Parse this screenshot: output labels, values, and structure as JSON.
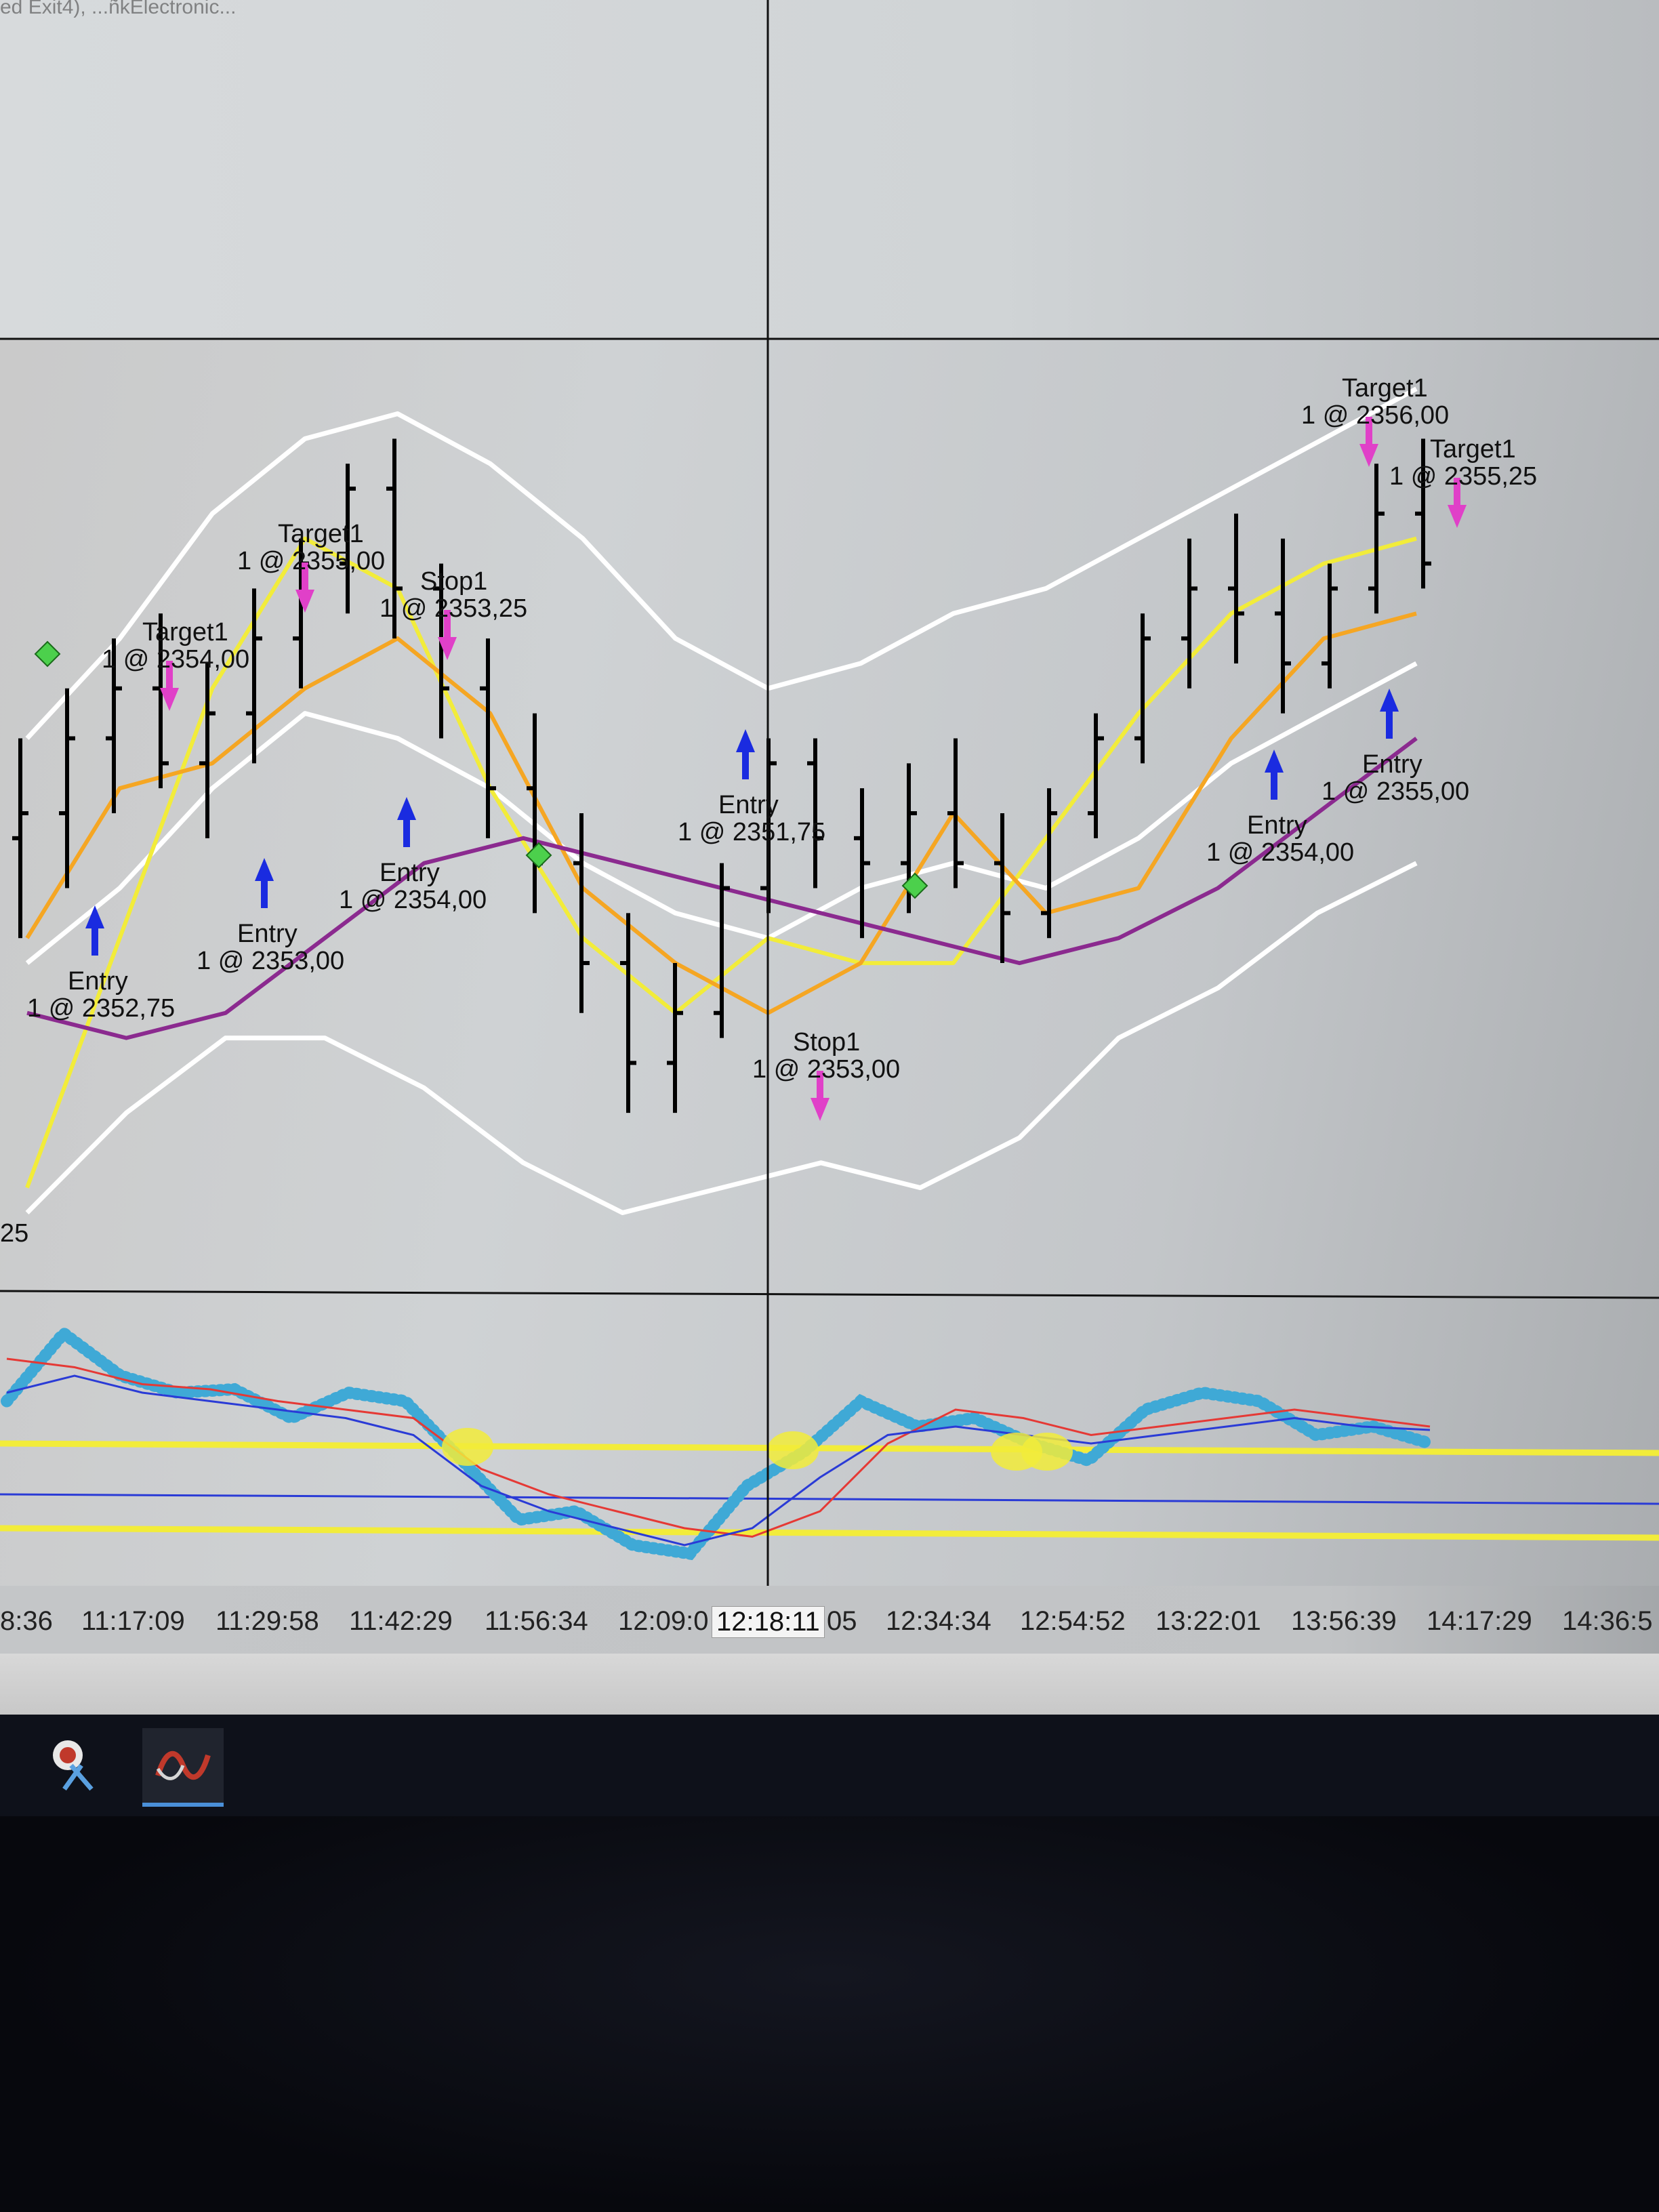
{
  "window": {
    "partial_title": "ed Exit4), ...ñkElectronic..."
  },
  "chart_data": [
    {
      "type": "candlestick-price",
      "panel": "price",
      "series": [
        {
          "kind": "ohlc",
          "color": "#000000",
          "values": [
            [
              2352.5,
              2353.5,
              2351.5,
              2352.75
            ],
            [
              2352.75,
              2354.0,
              2352.0,
              2353.5
            ],
            [
              2353.5,
              2354.5,
              2352.75,
              2354.0
            ],
            [
              2354.0,
              2354.75,
              2353.0,
              2353.25
            ],
            [
              2353.25,
              2354.25,
              2352.5,
              2353.75
            ],
            [
              2353.75,
              2355.0,
              2353.25,
              2354.5
            ],
            [
              2354.5,
              2355.5,
              2354.0,
              2355.25
            ],
            [
              2355.25,
              2356.25,
              2354.75,
              2356.0
            ],
            [
              2356.0,
              2356.5,
              2354.5,
              2355.0
            ],
            [
              2355.0,
              2355.25,
              2353.5,
              2354.0
            ],
            [
              2354.0,
              2354.5,
              2352.5,
              2353.0
            ],
            [
              2353.0,
              2353.75,
              2351.75,
              2352.25
            ],
            [
              2352.25,
              2352.75,
              2350.75,
              2351.25
            ],
            [
              2351.25,
              2351.75,
              2349.75,
              2350.25
            ],
            [
              2350.25,
              2351.25,
              2349.75,
              2350.75
            ],
            [
              2350.75,
              2352.25,
              2350.5,
              2352.0
            ],
            [
              2352.0,
              2353.5,
              2351.75,
              2353.25
            ],
            [
              2353.25,
              2353.5,
              2352.0,
              2352.5
            ],
            [
              2352.5,
              2353.0,
              2351.5,
              2352.25
            ],
            [
              2352.25,
              2353.25,
              2351.75,
              2352.75
            ],
            [
              2352.75,
              2353.5,
              2352.0,
              2352.25
            ],
            [
              2352.25,
              2352.75,
              2351.25,
              2351.75
            ],
            [
              2351.75,
              2353.0,
              2351.5,
              2352.75
            ],
            [
              2352.75,
              2353.75,
              2352.5,
              2353.5
            ],
            [
              2353.5,
              2354.75,
              2353.25,
              2354.5
            ],
            [
              2354.5,
              2355.5,
              2354.0,
              2355.0
            ],
            [
              2355.0,
              2355.75,
              2354.25,
              2354.75
            ],
            [
              2354.75,
              2355.5,
              2353.75,
              2354.25
            ],
            [
              2354.25,
              2355.25,
              2354.0,
              2355.0
            ],
            [
              2355.0,
              2356.25,
              2354.75,
              2355.75
            ],
            [
              2355.75,
              2356.5,
              2355.0,
              2355.25
            ]
          ]
        },
        {
          "name": "",
          "kind": "line",
          "color": "#ffffff",
          "role": "upper band",
          "values": [
            2353.5,
            2354.5,
            2355.75,
            2356.5,
            2356.75,
            2356.25,
            2355.5,
            2354.5,
            2354.0,
            2354.25,
            2354.75,
            2355.0,
            2355.5,
            2356.0,
            2356.5,
            2357.0
          ]
        },
        {
          "name": "",
          "kind": "line",
          "color": "#ffffff",
          "role": "middle band",
          "values": [
            2351.25,
            2352.0,
            2353.0,
            2353.75,
            2353.5,
            2353.0,
            2352.25,
            2351.75,
            2351.5,
            2352.0,
            2352.25,
            2352.0,
            2352.5,
            2353.25,
            2353.75,
            2354.25
          ]
        },
        {
          "name": "",
          "kind": "line",
          "color": "#ffffff",
          "role": "lower band",
          "values": [
            2348.75,
            2349.75,
            2350.5,
            2350.5,
            2350.0,
            2349.25,
            2348.75,
            2349.0,
            2349.25,
            2349.0,
            2349.5,
            2350.5,
            2351.0,
            2351.75,
            2352.25
          ]
        },
        {
          "name": "",
          "kind": "line",
          "color": "#f2ec3a",
          "values": [
            2349.0,
            2351.5,
            2354.0,
            2355.5,
            2355.0,
            2353.0,
            2351.5,
            2350.75,
            2351.5,
            2351.25,
            2351.25,
            2352.5,
            2353.75,
            2354.75,
            2355.25,
            2355.5
          ]
        },
        {
          "name": "",
          "kind": "line",
          "color": "#f5a623",
          "values": [
            2351.5,
            2353.0,
            2353.25,
            2354.0,
            2354.5,
            2353.75,
            2352.0,
            2351.25,
            2350.75,
            2351.25,
            2352.75,
            2351.75,
            2352.0,
            2353.5,
            2354.5,
            2354.75
          ]
        },
        {
          "name": "",
          "kind": "line",
          "color": "#8b2a8f",
          "values": [
            2350.75,
            2350.5,
            2350.75,
            2351.5,
            2352.25,
            2352.5,
            2352.25,
            2352.0,
            2351.75,
            2351.5,
            2351.25,
            2351.5,
            2352.0,
            2352.75,
            2353.5
          ]
        }
      ],
      "annotations": [
        {
          "kind": "entry",
          "label": "Entry",
          "detail": "1 @ 2352,75"
        },
        {
          "kind": "target",
          "label": "Target1",
          "detail": "1 @ 2354,00"
        },
        {
          "kind": "entry",
          "label": "Entry",
          "detail": "1 @ 2353,00"
        },
        {
          "kind": "target",
          "label": "Target1",
          "detail": "1 @ 2355,00"
        },
        {
          "kind": "stop",
          "label": "Stop1",
          "detail": "1 @ 2353,25"
        },
        {
          "kind": "entry",
          "label": "Entry",
          "detail": "1 @ 2354,00"
        },
        {
          "kind": "entry",
          "label": "Entry",
          "detail": "1 @ 2351,75"
        },
        {
          "kind": "stop",
          "label": "Stop1",
          "detail": "1 @ 2353,00"
        },
        {
          "kind": "entry",
          "label": "Entry",
          "detail": "1 @ 2354,00"
        },
        {
          "kind": "entry",
          "label": "Entry",
          "detail": "1 @ 2355,00"
        },
        {
          "kind": "target",
          "label": "Target1",
          "detail": "1 @ 2356,00"
        },
        {
          "kind": "target",
          "label": "Target1",
          "detail": "1 @ 2355,25"
        }
      ],
      "y_axis_partial_label": "25"
    },
    {
      "type": "line",
      "panel": "oscillator",
      "series": [
        {
          "name": "",
          "color": "#3fa9d6",
          "style": "dotted-thick",
          "values": [
            0.55,
            0.95,
            0.7,
            0.6,
            0.62,
            0.45,
            0.6,
            0.55,
            0.2,
            -0.15,
            -0.1,
            -0.3,
            -0.35,
            0.05,
            0.25,
            0.55,
            0.4,
            0.45,
            0.3,
            0.2,
            0.5,
            0.6,
            0.55,
            0.35,
            0.4,
            0.3
          ]
        },
        {
          "name": "",
          "color": "#e53935",
          "style": "thin",
          "values": [
            0.8,
            0.75,
            0.65,
            0.62,
            0.55,
            0.5,
            0.45,
            0.15,
            0.0,
            -0.1,
            -0.2,
            -0.25,
            -0.1,
            0.3,
            0.5,
            0.45,
            0.35,
            0.4,
            0.45,
            0.5,
            0.45,
            0.4
          ]
        },
        {
          "name": "",
          "color": "#2a3bd6",
          "style": "thin",
          "values": [
            0.6,
            0.7,
            0.6,
            0.55,
            0.5,
            0.45,
            0.35,
            0.05,
            -0.1,
            -0.2,
            -0.3,
            -0.2,
            0.1,
            0.35,
            0.4,
            0.35,
            0.3,
            0.35,
            0.4,
            0.45,
            0.4,
            0.38
          ]
        }
      ],
      "reference_levels": [
        0.3,
        0.0,
        -0.2
      ],
      "reference_colors": [
        "#f2ec3a",
        "#2a3bd6",
        "#f2ec3a"
      ]
    }
  ],
  "time_axis": {
    "ticks": [
      "8:36",
      "11:17:09",
      "11:29:58",
      "11:42:29",
      "11:56:34",
      "12:09:0",
      "05",
      "12:34:34",
      "12:54:52",
      "13:22:01",
      "13:56:39",
      "14:17:29",
      "14:36:5"
    ],
    "cursor_label": "12:18:11"
  },
  "taskbar": {
    "items": [
      "screenshot-tool-icon",
      "trading-app-icon"
    ]
  }
}
